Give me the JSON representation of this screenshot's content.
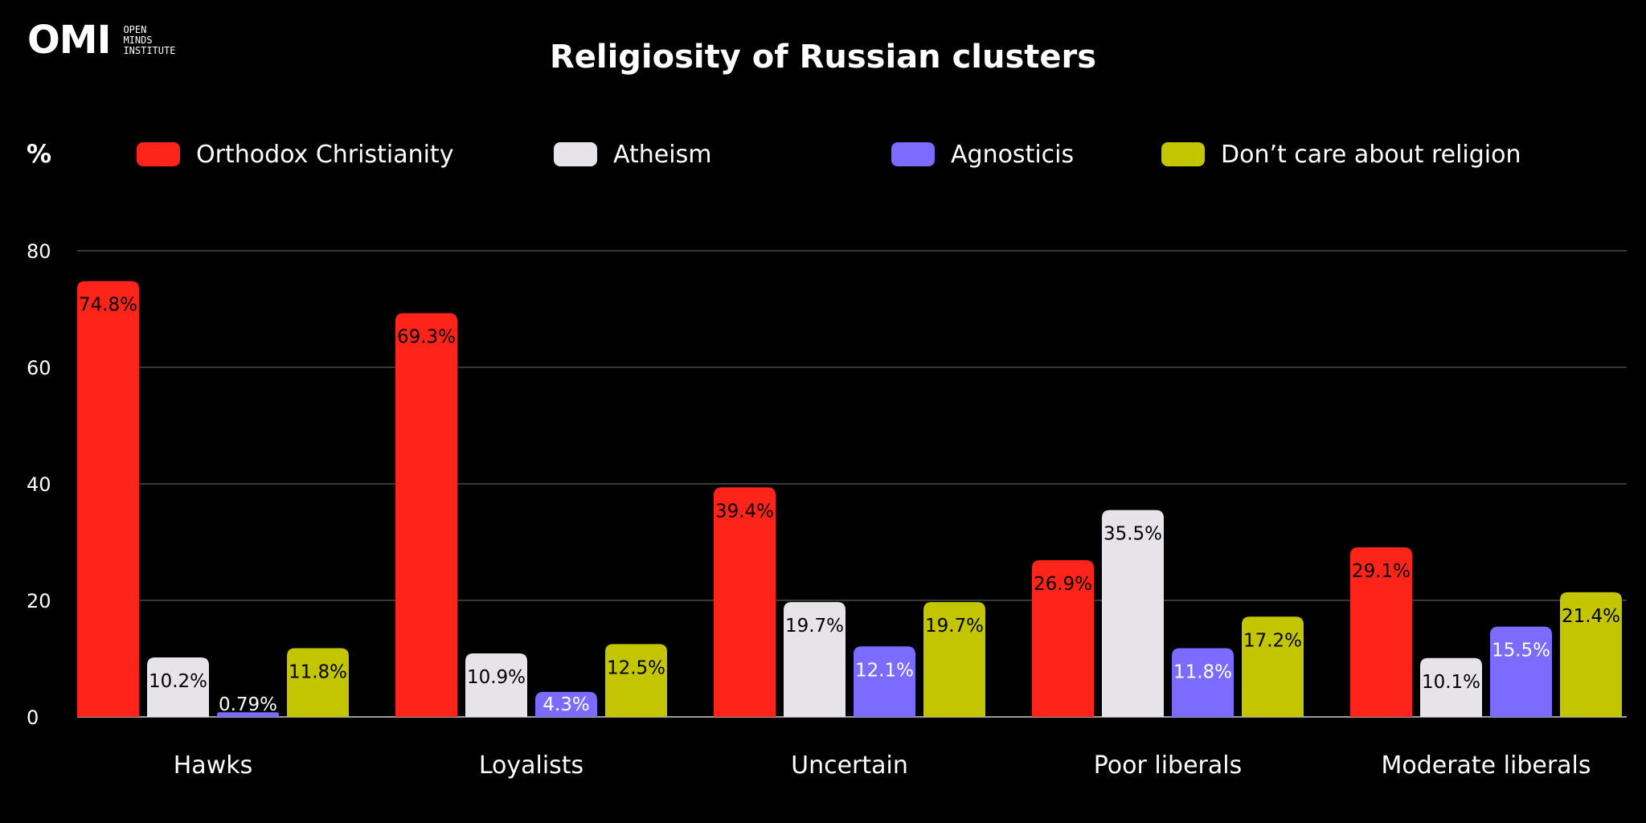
{
  "logo": {
    "mark": "OMI",
    "lines": [
      "OPEN",
      "MINDS",
      "INSTITUTE"
    ]
  },
  "chart_data": {
    "type": "bar",
    "title": "Religiosity of Russian clusters",
    "ylabel": "%",
    "xlabel": "",
    "ylim": [
      0,
      80
    ],
    "yticks": [
      0,
      20,
      40,
      60,
      80
    ],
    "categories": [
      "Hawks",
      "Loyalists",
      "Uncertain",
      "Poor liberals",
      "Moderate liberals"
    ],
    "series": [
      {
        "name": "Orthodox Christianity",
        "color": "#ff2419",
        "values": [
          74.8,
          69.3,
          39.4,
          26.9,
          29.1
        ],
        "labels": [
          "74.8%",
          "69.3%",
          "39.4%",
          "26.9%",
          "29.1%"
        ]
      },
      {
        "name": "Atheism",
        "color": "#e6e4e8",
        "values": [
          10.2,
          10.9,
          19.7,
          35.5,
          10.1
        ],
        "labels": [
          "10.2%",
          "10.9%",
          "19.7%",
          "35.5%",
          "10.1%"
        ]
      },
      {
        "name": "Agnosticis",
        "color": "#7b6cff",
        "values": [
          0.79,
          4.3,
          12.1,
          11.8,
          15.5
        ],
        "labels": [
          "0.79%",
          "4.3%",
          "12.1%",
          "11.8%",
          "15.5%"
        ]
      },
      {
        "name": "Don’t care about religion",
        "color": "#c2c500",
        "values": [
          11.8,
          12.5,
          19.7,
          17.2,
          21.4
        ],
        "labels": [
          "11.8%",
          "12.5%",
          "19.7%",
          "17.2%",
          "21.4%"
        ]
      }
    ],
    "grid": true,
    "legend": "top"
  }
}
